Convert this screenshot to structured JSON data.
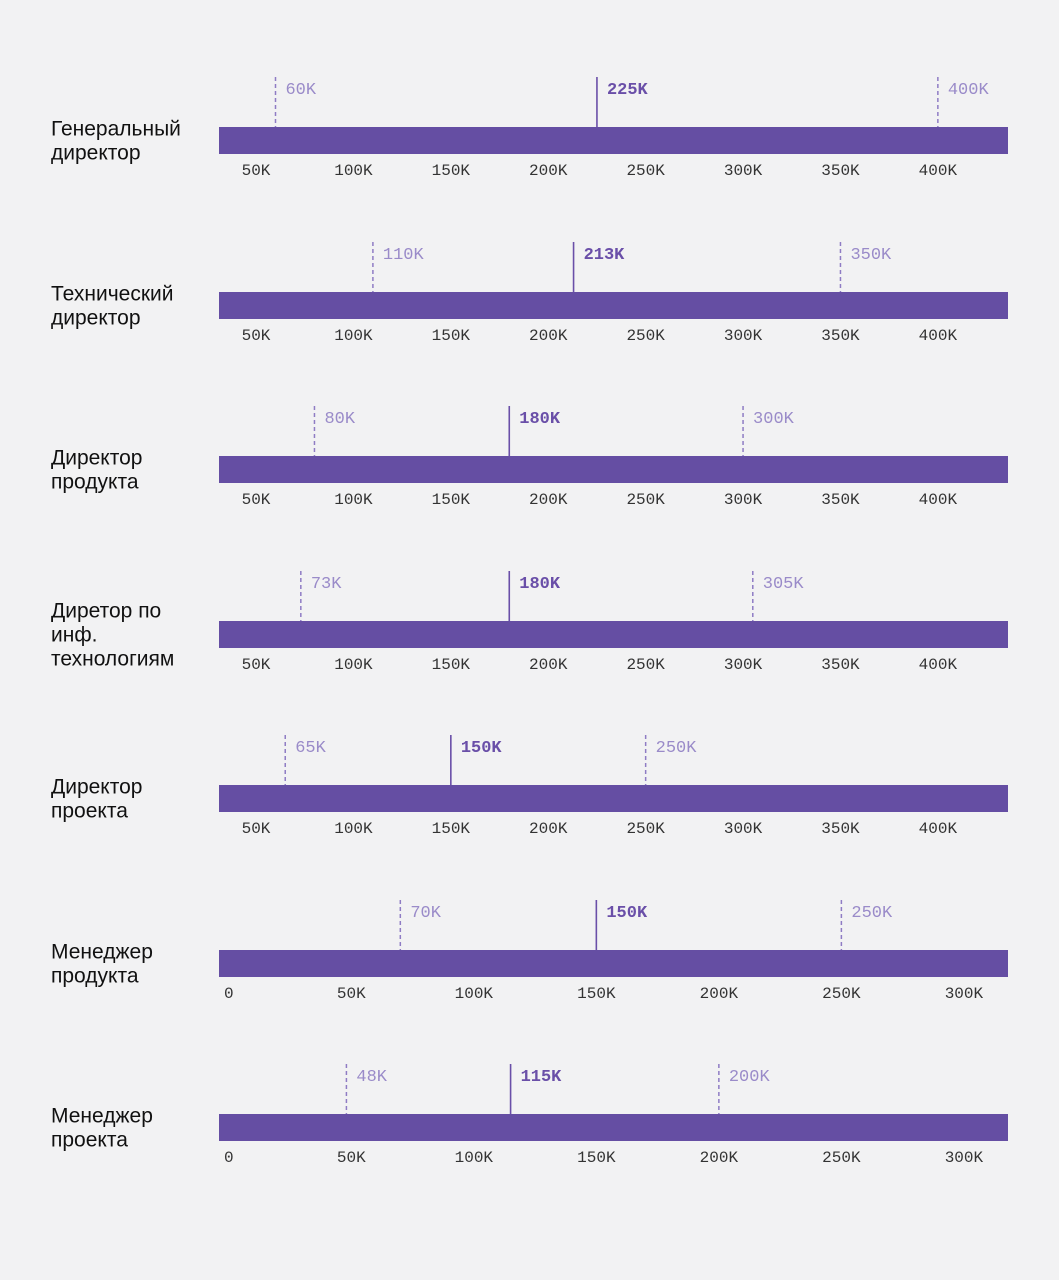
{
  "colors": {
    "background": "#f2f2f3",
    "bar": "#654ea3",
    "median": "#6a4fa8",
    "range_line": "#8f7cc4",
    "range_label": "#9a8bc9",
    "tick_label": "#333333",
    "row_label": "#111111"
  },
  "chart_data": {
    "type": "range",
    "title": "",
    "rows": [
      {
        "label": [
          "Генеральный",
          "директор"
        ],
        "axis": {
          "min": 31,
          "max": 436,
          "ticks": [
            50,
            100,
            150,
            200,
            250,
            300,
            350,
            400
          ],
          "tick_labels": [
            "50K",
            "100K",
            "150K",
            "200K",
            "250K",
            "300K",
            "350K",
            "400K"
          ]
        },
        "low": 60,
        "median": 225,
        "high": 400,
        "low_label": "60K",
        "median_label": "225K",
        "high_label": "400K"
      },
      {
        "label": [
          "Технический",
          "директор"
        ],
        "axis": {
          "min": 31,
          "max": 436,
          "ticks": [
            50,
            100,
            150,
            200,
            250,
            300,
            350,
            400
          ],
          "tick_labels": [
            "50K",
            "100K",
            "150K",
            "200K",
            "250K",
            "300K",
            "350K",
            "400K"
          ]
        },
        "low": 110,
        "median": 213,
        "high": 350,
        "low_label": "110K",
        "median_label": "213K",
        "high_label": "350K"
      },
      {
        "label": [
          "Директор",
          "продукта"
        ],
        "axis": {
          "min": 31,
          "max": 436,
          "ticks": [
            50,
            100,
            150,
            200,
            250,
            300,
            350,
            400
          ],
          "tick_labels": [
            "50K",
            "100K",
            "150K",
            "200K",
            "250K",
            "300K",
            "350K",
            "400K"
          ]
        },
        "low": 80,
        "median": 180,
        "high": 300,
        "low_label": "80K",
        "median_label": "180K",
        "high_label": "300K"
      },
      {
        "label": [
          "Диретор по",
          "инф.",
          "технологиям"
        ],
        "axis": {
          "min": 31,
          "max": 436,
          "ticks": [
            50,
            100,
            150,
            200,
            250,
            300,
            350,
            400
          ],
          "tick_labels": [
            "50K",
            "100K",
            "150K",
            "200K",
            "250K",
            "300K",
            "350K",
            "400K"
          ]
        },
        "low": 73,
        "median": 180,
        "high": 305,
        "low_label": "73K",
        "median_label": "180K",
        "high_label": "305K"
      },
      {
        "label": [
          "Директор",
          "проекта"
        ],
        "axis": {
          "min": 31,
          "max": 436,
          "ticks": [
            50,
            100,
            150,
            200,
            250,
            300,
            350,
            400
          ],
          "tick_labels": [
            "50K",
            "100K",
            "150K",
            "200K",
            "250K",
            "300K",
            "350K",
            "400K"
          ]
        },
        "low": 65,
        "median": 150,
        "high": 250,
        "low_label": "65K",
        "median_label": "150K",
        "high_label": "250K"
      },
      {
        "label": [
          "Менеджер",
          "продукта"
        ],
        "axis": {
          "min": -4,
          "max": 318,
          "ticks": [
            0,
            50,
            100,
            150,
            200,
            250,
            300
          ],
          "tick_labels": [
            "0",
            "50K",
            "100K",
            "150K",
            "200K",
            "250K",
            "300K"
          ]
        },
        "low": 70,
        "median": 150,
        "high": 250,
        "low_label": "70K",
        "median_label": "150K",
        "high_label": "250K"
      },
      {
        "label": [
          "Менеджер",
          "проекта"
        ],
        "axis": {
          "min": -4,
          "max": 318,
          "ticks": [
            0,
            50,
            100,
            150,
            200,
            250,
            300
          ],
          "tick_labels": [
            "0",
            "50K",
            "100K",
            "150K",
            "200K",
            "250K",
            "300K"
          ]
        },
        "low": 48,
        "median": 115,
        "high": 200,
        "low_label": "48K",
        "median_label": "115K",
        "high_label": "200K"
      }
    ]
  }
}
